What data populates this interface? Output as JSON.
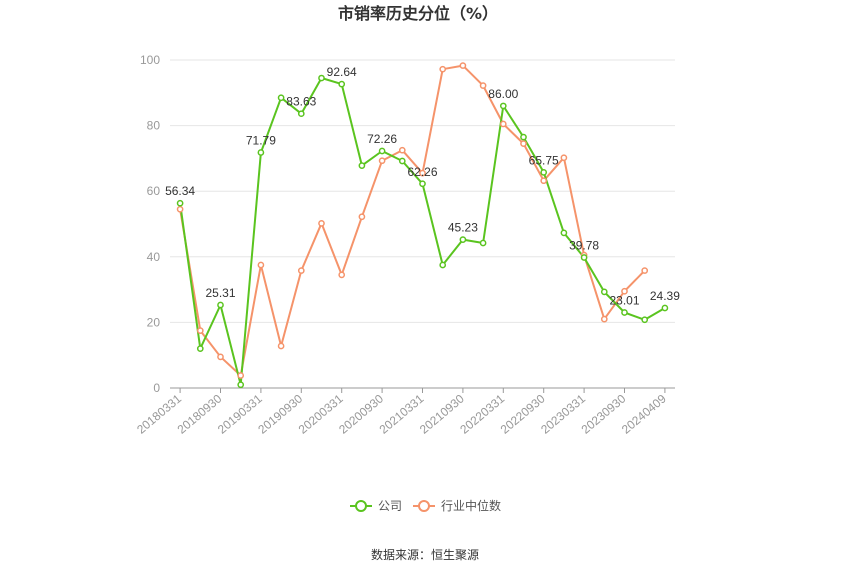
{
  "chart_data": {
    "type": "line",
    "title": "市销率历史分位（%）",
    "ylim": [
      0,
      100
    ],
    "yticks": [
      "0",
      "20",
      "40",
      "60",
      "80",
      "100"
    ],
    "x_tick_labels": [
      "20180331",
      "20180930",
      "20190331",
      "20190930",
      "20200331",
      "20200930",
      "20210331",
      "20210930",
      "20220331",
      "20220930",
      "20230331",
      "20230930",
      "20240409"
    ],
    "x": [
      "20180331",
      "20180630",
      "20180930",
      "20181231",
      "20190331",
      "20190630",
      "20190930",
      "20191231",
      "20200331",
      "20200630",
      "20200930",
      "20201231",
      "20210331",
      "20210630",
      "20210930",
      "20211231",
      "20220331",
      "20220630",
      "20220930",
      "20221231",
      "20230331",
      "20230630",
      "20230930",
      "20231231",
      "20240409"
    ],
    "series": [
      {
        "name": "公司",
        "color": "#5ac41f",
        "values": [
          56.34,
          12.0,
          25.31,
          1.0,
          71.79,
          88.5,
          83.63,
          94.5,
          92.64,
          67.8,
          72.26,
          69.2,
          62.26,
          37.5,
          45.23,
          44.2,
          86.0,
          76.5,
          65.75,
          47.3,
          39.78,
          29.3,
          23.01,
          20.8,
          24.39
        ],
        "labels": [
          "56.34",
          "",
          "25.31",
          "",
          "71.79",
          "",
          "83.63",
          "",
          "92.64",
          "",
          "72.26",
          "",
          "62.26",
          "",
          "45.23",
          "",
          "86.00",
          "",
          "65.75",
          "",
          "39.78",
          "",
          "23.01",
          "",
          "24.39"
        ]
      },
      {
        "name": "行业中位数",
        "color": "#f5936a",
        "values": [
          54.5,
          17.5,
          9.5,
          3.8,
          37.5,
          12.8,
          35.8,
          50.2,
          34.5,
          52.2,
          69.3,
          72.5,
          65.5,
          97.2,
          98.3,
          92.2,
          80.5,
          74.5,
          63.2,
          70.2,
          40.5,
          21.0,
          29.5,
          35.8,
          null
        ]
      }
    ],
    "legend_position": "bottom",
    "grid": "horizontal"
  },
  "source_text": "数据来源：恒生聚源"
}
